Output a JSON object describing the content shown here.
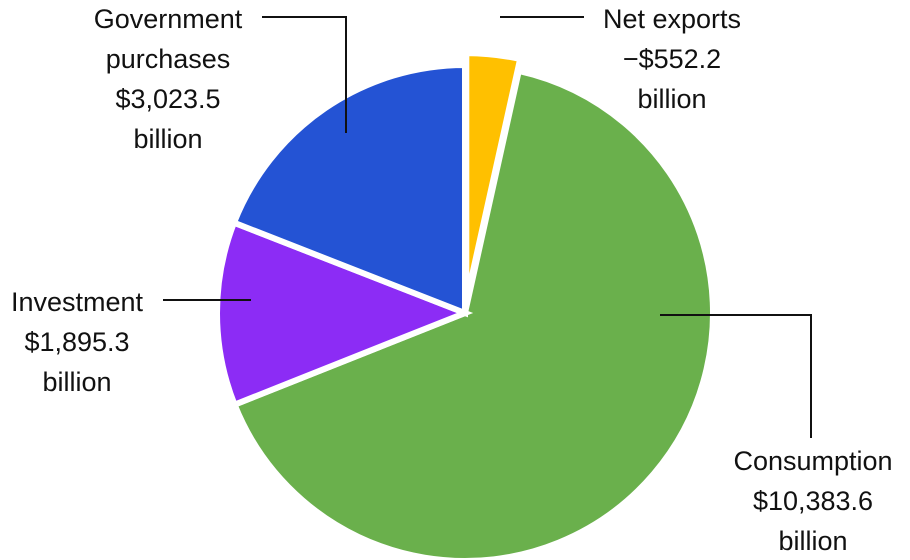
{
  "chart_data": {
    "type": "pie",
    "title": "",
    "slices": [
      {
        "key": "consumption",
        "name": "Consumption",
        "value": 10383.6,
        "value_label": "$10,383.6",
        "unit_label": "billion",
        "color": "#6ab04c",
        "exploded": false
      },
      {
        "key": "investment",
        "name": "Investment",
        "value": 1895.3,
        "value_label": "$1,895.3",
        "unit_label": "billion",
        "color": "#8c2cf5",
        "exploded": false
      },
      {
        "key": "government",
        "name": "Government purchases",
        "value": 3023.5,
        "value_label": "$3,023.5",
        "unit_label": "billion",
        "color": "#2453d4",
        "exploded": false
      },
      {
        "key": "net-exports",
        "name": "Net exports",
        "value": -552.2,
        "value_label": "−$552.2",
        "unit_label": "billion",
        "color": "#ffc000",
        "exploded": true
      }
    ]
  }
}
